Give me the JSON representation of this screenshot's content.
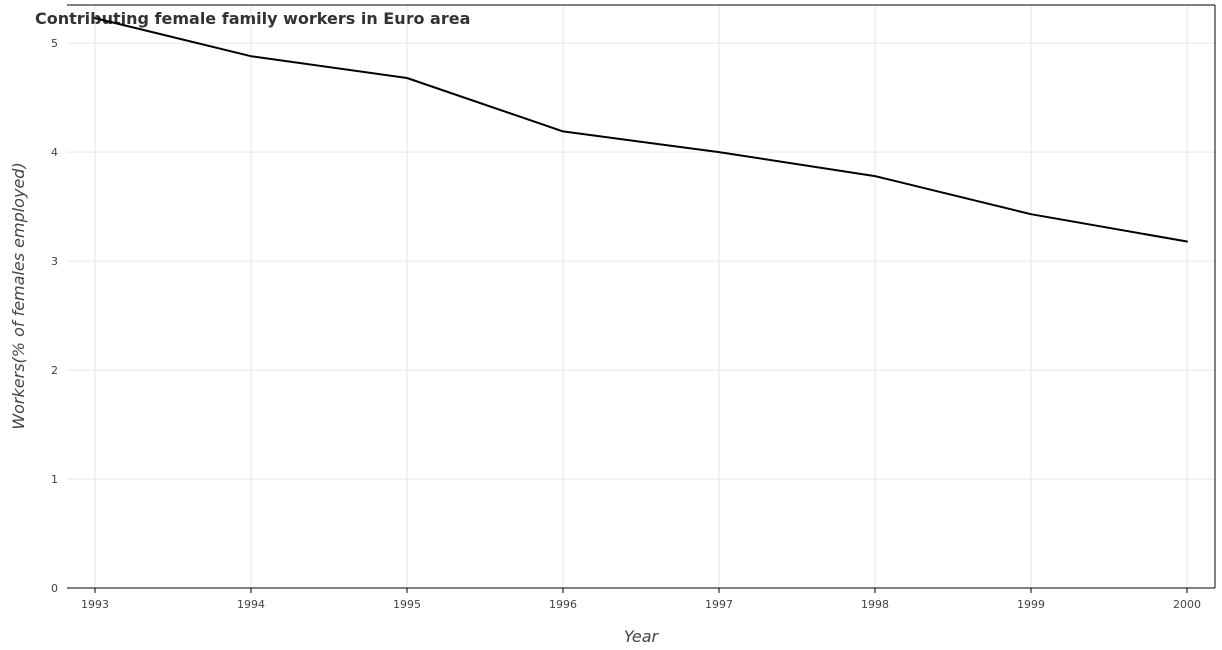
{
  "chart_data": {
    "type": "line",
    "title": "Contributing female family workers in Euro area",
    "xlabel": "Year",
    "ylabel": "Workers(% of females employed)",
    "categories": [
      "1993",
      "1994",
      "1995",
      "1996",
      "1997",
      "1998",
      "1999",
      "2000"
    ],
    "series": [
      {
        "values": [
          5.23,
          4.88,
          4.68,
          4.19,
          4.0,
          3.78,
          3.43,
          3.18
        ]
      }
    ],
    "ylim": [
      0,
      5.35
    ],
    "yticks": [
      0,
      1,
      2,
      3,
      4,
      5
    ],
    "grid": true,
    "line_color": "#000000"
  }
}
